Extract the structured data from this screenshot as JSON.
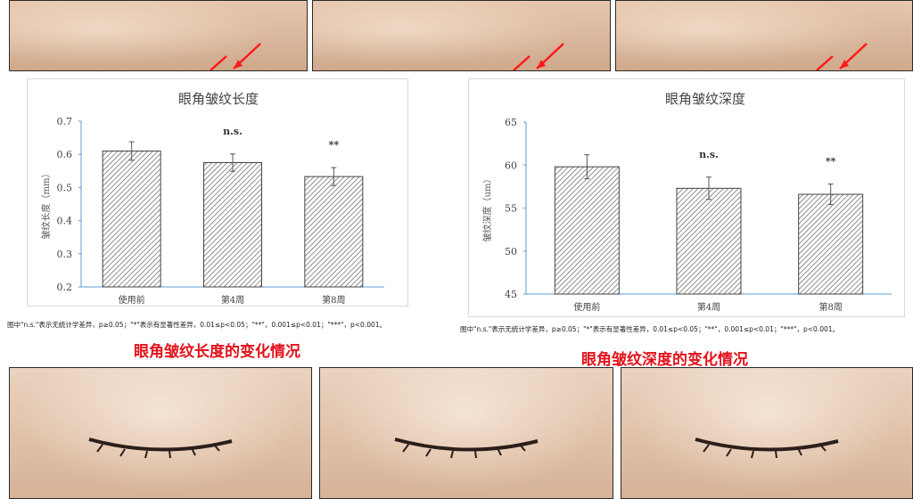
{
  "chart_data": [
    {
      "type": "bar",
      "title": "眼角皱纹长度",
      "ylabel": "皱纹长度（mm）",
      "xlabel": "",
      "categories": [
        "使用前",
        "第4周",
        "第8周"
      ],
      "values": [
        0.61,
        0.575,
        0.533
      ],
      "errors": [
        0.028,
        0.026,
        0.027
      ],
      "annotations": [
        "",
        "n.s.",
        "**"
      ],
      "ylim": [
        0.2,
        0.7
      ],
      "yticks": [
        "0.2",
        "0.3",
        "0.4",
        "0.5",
        "0.6",
        "0.7"
      ],
      "grid": false,
      "bar_fill": "hatched"
    },
    {
      "type": "bar",
      "title": "眼角皱纹深度",
      "ylabel": "皱纹深度（um）",
      "xlabel": "",
      "categories": [
        "使用前",
        "第4周",
        "第8周"
      ],
      "values": [
        59.8,
        57.3,
        56.6
      ],
      "errors": [
        1.4,
        1.3,
        1.2
      ],
      "annotations": [
        "",
        "n.s.",
        "**"
      ],
      "ylim": [
        45,
        65
      ],
      "yticks": [
        "45",
        "50",
        "55",
        "60",
        "65"
      ],
      "grid": false,
      "bar_fill": "hatched"
    }
  ],
  "notes": {
    "left": "图中\"n.s.\"表示无统计学差异，p≥0.05；\"*\"表示有显著性差异，0.01≤p<0.05；\"**\"，0.001≤p<0.01；\"***\"，p<0.001。",
    "right": "图中\"n.s.\"表示无统计学差异，p≥0.05；\"*\"表示有显著性差异，0.01≤p<0.05；\"**\"，0.001≤p<0.01；\"***\"，p<0.001。"
  },
  "captions": {
    "left": "眼角皱纹长度的变化情况",
    "right": "眼角皱纹深度的变化情况"
  },
  "colors": {
    "axis": "#5b9bd5",
    "bar_stroke": "#444444",
    "caption": "#e3121b",
    "arrow": "#ff1a1a"
  }
}
